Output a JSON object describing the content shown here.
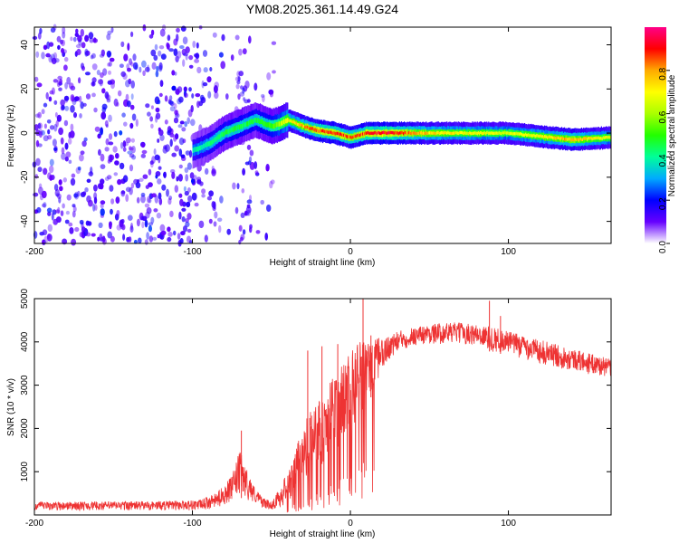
{
  "title": "YM08.2025.361.14.49.G24",
  "chart_data": [
    {
      "type": "heatmap",
      "xlabel": "Height of straight line (km)",
      "ylabel": "Frequency (Hz)",
      "xlim": [
        -200,
        165
      ],
      "ylim": [
        -50,
        48
      ],
      "xticks": [
        -200,
        -100,
        0,
        100
      ],
      "yticks": [
        -40,
        -20,
        0,
        20,
        40
      ],
      "colorbar": {
        "label": "Normalized spectral amplitude",
        "range": [
          0,
          1
        ],
        "ticks": [
          "0.0",
          "0.2",
          "0.4",
          "0.6",
          "0.8"
        ],
        "tick_values": [
          0,
          0.2,
          0.4,
          0.6,
          0.8
        ],
        "colors": [
          "#ffffff",
          "#6600ff",
          "#0000ff",
          "#00aaff",
          "#00ff99",
          "#22ff00",
          "#aaff00",
          "#ffff00",
          "#ffaa00",
          "#ff0000",
          "#ff0088"
        ]
      },
      "signal_track": {
        "x": [
          -100,
          -90,
          -80,
          -70,
          -60,
          -50,
          -45,
          -40,
          -30,
          -20,
          -10,
          0,
          10,
          20,
          50,
          100,
          140,
          165
        ],
        "y": [
          -8,
          -5,
          0,
          3,
          6,
          3,
          4,
          6,
          3,
          1,
          0,
          -2,
          0,
          0,
          0,
          0,
          -3,
          -2
        ],
        "amplitude": [
          0.4,
          0.45,
          0.5,
          0.5,
          0.5,
          0.55,
          0.65,
          0.75,
          0.85,
          0.95,
          0.95,
          0.9,
          0.95,
          1.0,
          0.8,
          0.7,
          0.85,
          0.7
        ]
      }
    },
    {
      "type": "line",
      "xlabel": "Height of straight line (km)",
      "ylabel": "SNR (10 * v/v)",
      "xlim": [
        -200,
        165
      ],
      "ylim": [
        0,
        5000
      ],
      "xticks": [
        -200,
        -100,
        0,
        100
      ],
      "yticks": [
        1000,
        2000,
        3000,
        4000,
        5000
      ],
      "color": "#ee3333",
      "envelope": {
        "x": [
          -200,
          -120,
          -95,
          -85,
          -75,
          -70,
          -65,
          -60,
          -55,
          -50,
          -45,
          -40,
          -35,
          -30,
          -25,
          -20,
          -15,
          -10,
          -5,
          0,
          5,
          10,
          15,
          20,
          25,
          30,
          40,
          50,
          60,
          70,
          80,
          90,
          100,
          110,
          120,
          130,
          140,
          150,
          160,
          165
        ],
        "low": [
          100,
          100,
          100,
          150,
          300,
          400,
          350,
          250,
          150,
          120,
          150,
          250,
          500,
          700,
          900,
          1100,
          1300,
          1500,
          1700,
          2000,
          2200,
          2600,
          2800,
          3300,
          3600,
          3750,
          3900,
          3950,
          3950,
          3950,
          3900,
          3750,
          3700,
          3600,
          3500,
          3400,
          3350,
          3250,
          3200,
          3150
        ],
        "high": [
          300,
          320,
          350,
          500,
          900,
          1500,
          1000,
          600,
          400,
          300,
          600,
          1000,
          1500,
          2000,
          2500,
          2700,
          3000,
          3200,
          3500,
          3800,
          4000,
          4000,
          4050,
          4100,
          4150,
          4250,
          4350,
          4400,
          4450,
          4450,
          4400,
          4350,
          4250,
          4150,
          4050,
          3950,
          3850,
          3750,
          3650,
          3600
        ],
        "spikes": [
          {
            "x": -69,
            "y": 1950
          },
          {
            "x": -27,
            "y": 3800
          },
          {
            "x": -18,
            "y": 3900
          },
          {
            "x": -8,
            "y": 3950
          },
          {
            "x": 8,
            "y": 5000
          },
          {
            "x": 13,
            "y": 4150
          },
          {
            "x": 88,
            "y": 4950
          },
          {
            "x": 95,
            "y": 4600
          }
        ]
      }
    }
  ]
}
